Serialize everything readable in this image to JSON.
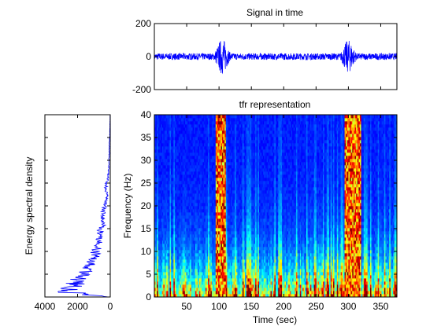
{
  "chart_data": [
    {
      "type": "line",
      "title": "Signal in time",
      "xlabel": "",
      "ylabel": "",
      "xlim": [
        0,
        375
      ],
      "ylim": [
        -200,
        200
      ],
      "y_ticks": [
        "200",
        "0",
        "-200"
      ],
      "y_tick_values": [
        200,
        0,
        -200
      ],
      "grid": false,
      "series": [
        {
          "color": "#0000ff",
          "baseline_amplitude": 20,
          "bursts": [
            {
              "center": 105,
              "width": 10,
              "amplitude": 110
            },
            {
              "center": 300,
              "width": 10,
              "amplitude": 100
            }
          ]
        }
      ]
    },
    {
      "type": "heatmap",
      "title": "tfr representation",
      "xlabel": "Time (sec)",
      "ylabel": "Frequency (Hz)",
      "xlim": [
        0,
        375
      ],
      "ylim": [
        0,
        40
      ],
      "x_ticks": [
        "50",
        "100",
        "150",
        "200",
        "250",
        "300",
        "350"
      ],
      "x_tick_values": [
        50,
        100,
        150,
        200,
        250,
        300,
        350
      ],
      "y_ticks": [
        "0",
        "5",
        "10",
        "15",
        "20",
        "25",
        "30",
        "35",
        "40"
      ],
      "y_tick_values": [
        0,
        5,
        10,
        15,
        20,
        25,
        30,
        35,
        40
      ],
      "colormap": "jet",
      "high_energy_bands": [
        {
          "t_start": 95,
          "t_end": 110,
          "f_start": 0,
          "f_end": 40
        },
        {
          "t_start": 295,
          "t_end": 320,
          "f_start": 0,
          "f_end": 40
        }
      ],
      "grid": false
    },
    {
      "type": "line",
      "title": "",
      "xlabel": "",
      "ylabel": "Energy spectral density",
      "orientation": "vertical",
      "x_reversed": true,
      "xlim": [
        0,
        4000
      ],
      "ylim": [
        0,
        40
      ],
      "x_ticks": [
        "4000",
        "2000",
        "0"
      ],
      "x_tick_values": [
        4000,
        2000,
        0
      ],
      "series": [
        {
          "color": "#0000ff",
          "frequency": [
            0,
            1,
            2,
            3,
            4,
            5,
            6,
            8,
            10,
            12,
            14,
            16,
            18,
            20,
            22,
            24,
            26,
            28,
            30,
            32,
            34,
            36,
            38,
            40
          ],
          "energy": [
            150,
            2500,
            2400,
            2100,
            2000,
            1800,
            1500,
            1100,
            900,
            700,
            700,
            400,
            500,
            350,
            200,
            300,
            150,
            100,
            80,
            60,
            50,
            30,
            20,
            10
          ]
        }
      ],
      "grid": false
    }
  ]
}
